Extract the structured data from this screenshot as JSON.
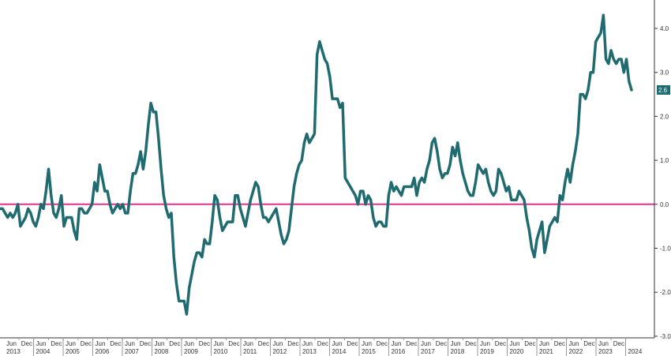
{
  "colors": {
    "series": "#1f6b6f",
    "zero_line": "#e0338f",
    "axis": "#333333",
    "last_value_bg": "#1f6b6f"
  },
  "chart_data": {
    "type": "line",
    "title": "",
    "xlabel": "",
    "ylabel": "",
    "ylim": [
      -3.0,
      4.4
    ],
    "y_ticks": [
      "4.0",
      "3.0",
      "2.0",
      "1.0",
      "0.0",
      "-1.0",
      "-2.0",
      "-3.0"
    ],
    "x_tick_labels": [
      "Jun",
      "Dec"
    ],
    "years": [
      "2013",
      "2004",
      "2005",
      "2006",
      "2007",
      "2008",
      "2009",
      "2010",
      "2011",
      "2012",
      "2013",
      "2014",
      "2015",
      "2016",
      "2017",
      "2018",
      "2019",
      "2020",
      "2021",
      "2022",
      "2023",
      "2024"
    ],
    "reference_line": {
      "value": 0.0
    },
    "last_value_label": "2.6",
    "series": [
      {
        "values": [
          -0.1,
          -0.1,
          -0.2,
          -0.3,
          -0.2,
          -0.3,
          -0.2,
          0.0,
          -0.5,
          -0.4,
          -0.3,
          -0.1,
          -0.2,
          -0.4,
          -0.5,
          -0.3,
          0.0,
          -0.1,
          0.3,
          0.8,
          0.2,
          -0.2,
          -0.3,
          -0.1,
          0.2,
          -0.5,
          -0.3,
          -0.3,
          -0.3,
          -0.6,
          -0.8,
          -0.1,
          -0.1,
          -0.2,
          -0.2,
          -0.1,
          0.0,
          0.5,
          0.3,
          0.9,
          0.6,
          0.3,
          0.3,
          0.0,
          -0.2,
          -0.1,
          0.0,
          -0.1,
          0.0,
          -0.2,
          -0.2,
          0.3,
          0.7,
          0.7,
          0.9,
          1.2,
          0.8,
          1.2,
          1.8,
          2.3,
          2.1,
          2.1,
          1.5,
          0.8,
          0.2,
          -0.1,
          -0.3,
          -0.2,
          -1.2,
          -1.8,
          -2.2,
          -2.2,
          -2.2,
          -2.5,
          -1.9,
          -1.6,
          -1.3,
          -1.1,
          -1.1,
          -1.2,
          -0.8,
          -0.9,
          -0.9,
          -0.4,
          0.2,
          0.1,
          -0.3,
          -0.6,
          -0.5,
          -0.4,
          -0.4,
          -0.4,
          0.2,
          0.2,
          -0.1,
          -0.3,
          -0.5,
          -0.2,
          0.1,
          0.3,
          0.5,
          0.4,
          0.0,
          -0.3,
          -0.3,
          -0.4,
          -0.3,
          -0.2,
          -0.1,
          -0.4,
          -0.7,
          -0.9,
          -0.8,
          -0.6,
          -0.1,
          0.4,
          0.7,
          0.9,
          1.0,
          1.4,
          1.6,
          1.4,
          1.5,
          1.6,
          3.4,
          3.7,
          3.5,
          3.3,
          3.2,
          2.9,
          2.4,
          2.4,
          2.4,
          2.2,
          2.3,
          0.6,
          0.5,
          0.4,
          0.3,
          0.2,
          0.0,
          0.3,
          0.3,
          0.0,
          0.2,
          0.1,
          -0.3,
          -0.5,
          -0.4,
          -0.4,
          -0.5,
          -0.5,
          0.2,
          0.5,
          0.3,
          0.4,
          0.3,
          0.2,
          0.4,
          0.4,
          0.4,
          0.4,
          0.6,
          0.2,
          0.5,
          0.6,
          0.5,
          0.8,
          1.0,
          1.4,
          1.5,
          1.2,
          0.8,
          0.6,
          0.7,
          0.7,
          0.9,
          1.3,
          1.1,
          1.4,
          1.0,
          0.7,
          0.5,
          0.3,
          0.2,
          0.2,
          0.5,
          0.9,
          0.8,
          0.7,
          0.8,
          0.5,
          0.3,
          0.2,
          0.3,
          0.8,
          0.7,
          0.5,
          0.3,
          0.4,
          0.1,
          0.1,
          0.1,
          0.3,
          0.2,
          0.1,
          -0.3,
          -0.6,
          -1.0,
          -1.2,
          -0.8,
          -0.6,
          -0.4,
          -1.1,
          -0.8,
          -0.5,
          -0.4,
          -0.3,
          -0.4,
          0.2,
          0.1,
          0.5,
          0.8,
          0.5,
          0.9,
          1.2,
          1.6,
          2.5,
          2.5,
          2.4,
          2.6,
          3.0,
          3.0,
          3.7,
          3.8,
          3.9,
          4.3,
          3.3,
          3.2,
          3.5,
          3.3,
          3.2,
          3.3,
          3.3,
          3.0,
          3.3,
          2.8,
          2.6
        ]
      }
    ]
  }
}
